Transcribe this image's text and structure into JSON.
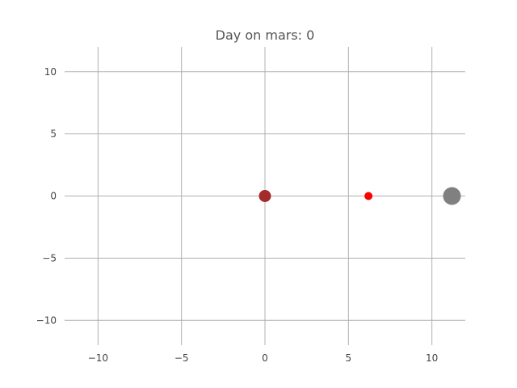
{
  "chart_data": {
    "type": "scatter",
    "title": "Day on mars: 0",
    "xlabel": "",
    "ylabel": "",
    "xlim": [
      -12,
      12
    ],
    "ylim": [
      -12,
      12
    ],
    "grid": true,
    "xticks": [
      -10,
      -5,
      0,
      5,
      10
    ],
    "yticks": [
      -10,
      -5,
      0,
      5,
      10
    ],
    "xtick_labels": [
      "−10",
      "−5",
      "0",
      "5",
      "10"
    ],
    "ytick_labels": [
      "−10",
      "−5",
      "0",
      "5",
      "10"
    ],
    "points": [
      {
        "x": 0,
        "y": 0,
        "color": "#a52a2a",
        "size": "medium"
      },
      {
        "x": 6.2,
        "y": 0,
        "color": "#ff0000",
        "size": "small"
      },
      {
        "x": 11.2,
        "y": 0,
        "color": "#808080",
        "size": "large"
      }
    ]
  }
}
